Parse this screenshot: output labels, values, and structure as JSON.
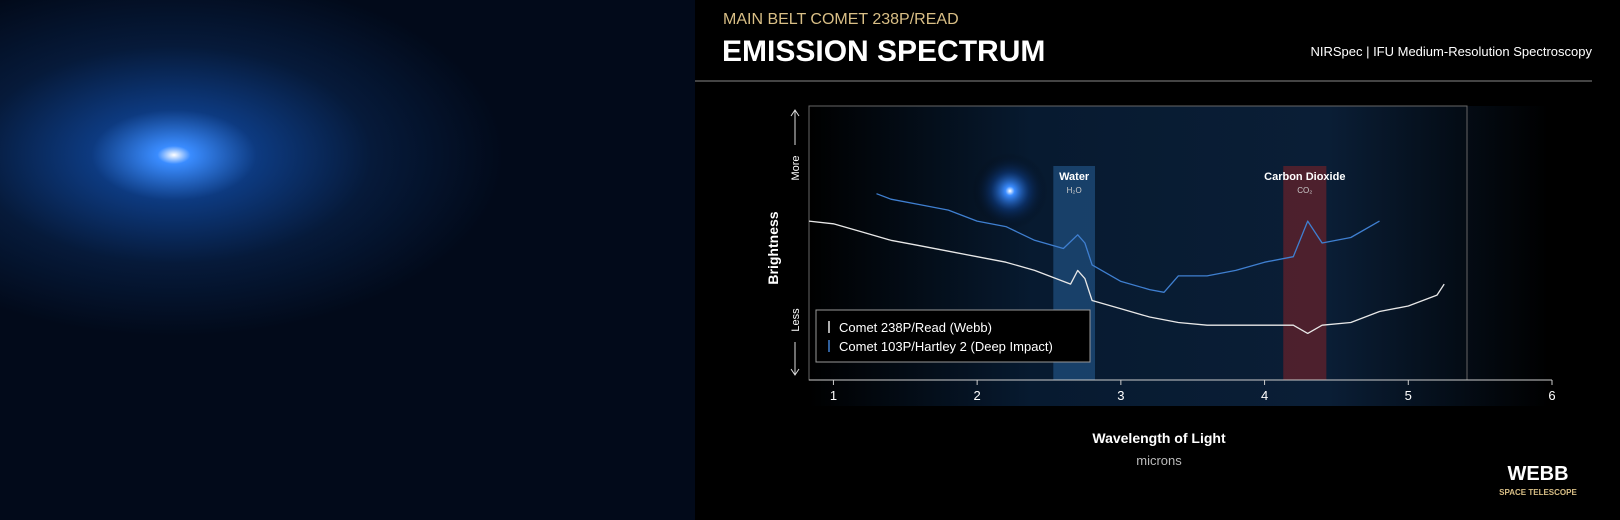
{
  "chart_data": {
    "type": "line",
    "subtitle": "MAIN BELT COMET 238P/READ",
    "title": "EMISSION SPECTRUM",
    "instrument": "NIRSpec | IFU Medium-Resolution Spectroscopy",
    "x_label": "Wavelength of Light",
    "x_unit": "microns",
    "y_label": "Brightness",
    "y_high_label": "More",
    "y_low_label": "Less",
    "xlim": [
      0.83,
      6
    ],
    "xticks": [
      1,
      2,
      3,
      4,
      5,
      6
    ],
    "ylim": [
      0,
      100
    ],
    "grid": false,
    "legend_position": "lower left",
    "bands": [
      {
        "label": "Water",
        "sublabel": "H₂O",
        "xrange": [
          2.53,
          2.82
        ],
        "color": "#2f6fb0"
      },
      {
        "label": "Carbon Dioxide",
        "sublabel": "CO₂",
        "xrange": [
          4.13,
          4.43
        ],
        "color": "#a02424"
      }
    ],
    "series": [
      {
        "name": "Comet 238P/Read (Webb)",
        "color": "#e8e8e8",
        "x": [
          0.83,
          1.0,
          1.2,
          1.4,
          1.6,
          1.8,
          2.0,
          2.2,
          2.4,
          2.6,
          2.65,
          2.7,
          2.75,
          2.8,
          3.0,
          3.2,
          3.4,
          3.6,
          3.8,
          4.0,
          4.2,
          4.3,
          4.4,
          4.6,
          4.8,
          5.0,
          5.2,
          5.25
        ],
        "values": [
          58,
          57,
          54,
          51,
          49,
          47,
          45,
          43,
          40,
          36,
          35,
          40,
          37,
          29,
          26,
          23,
          21,
          20,
          20,
          20,
          20,
          17,
          20,
          21,
          25,
          27,
          31,
          35
        ]
      },
      {
        "name": "Comet 103P/Hartley 2 (Deep Impact)",
        "color": "#3f7fd0",
        "x": [
          1.3,
          1.4,
          1.6,
          1.8,
          2.0,
          2.2,
          2.4,
          2.6,
          2.7,
          2.75,
          2.8,
          3.0,
          3.2,
          3.3,
          3.4,
          3.6,
          3.8,
          4.0,
          4.2,
          4.3,
          4.4,
          4.6,
          4.8
        ],
        "values": [
          68,
          66,
          64,
          62,
          58,
          56,
          51,
          48,
          53,
          50,
          42,
          36,
          33,
          32,
          38,
          38,
          40,
          43,
          45,
          58,
          50,
          52,
          58
        ]
      }
    ]
  },
  "branding": {
    "name": "WEBB",
    "tagline": "SPACE TELESCOPE"
  }
}
